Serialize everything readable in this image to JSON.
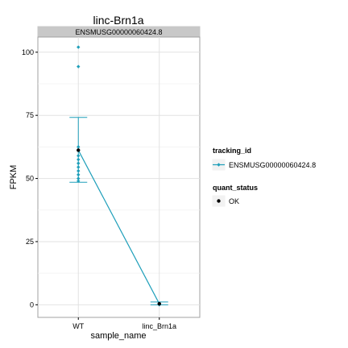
{
  "chart_data": {
    "type": "scatter",
    "title": "linc-Brn1a",
    "facet_label": "ENSMUSG00000060424.8",
    "xlabel": "sample_name",
    "ylabel": "FPKM",
    "categories": [
      "WT",
      "linc_Brn1a"
    ],
    "ylim": [
      -5,
      106
    ],
    "yticks": [
      0,
      25,
      50,
      75,
      100
    ],
    "grid": true,
    "legend_position": "right",
    "series": [
      {
        "name": "ENSMUSG00000060424.8",
        "color": "#1f9fba",
        "mean": [
          61.2,
          0.4
        ],
        "error_low": [
          48.5,
          0.0
        ],
        "error_high": [
          74.2,
          1.1
        ],
        "replicates": [
          {
            "x": "WT",
            "values": [
              102.0,
              94.3,
              62.5,
              59.0,
              57.5,
              56.0,
              54.5,
              53.0,
              51.5,
              50.0,
              49.0
            ]
          },
          {
            "x": "linc_Brn1a",
            "values": [
              0.0,
              0.2,
              0.4,
              0.6
            ]
          }
        ]
      }
    ],
    "legends": [
      {
        "title": "tracking_id",
        "entries": [
          {
            "label": "ENSMUSG00000060424.8",
            "color": "#1f9fba"
          }
        ]
      },
      {
        "title": "quant_status",
        "entries": [
          {
            "label": "OK",
            "color": "#000000"
          }
        ]
      }
    ]
  }
}
